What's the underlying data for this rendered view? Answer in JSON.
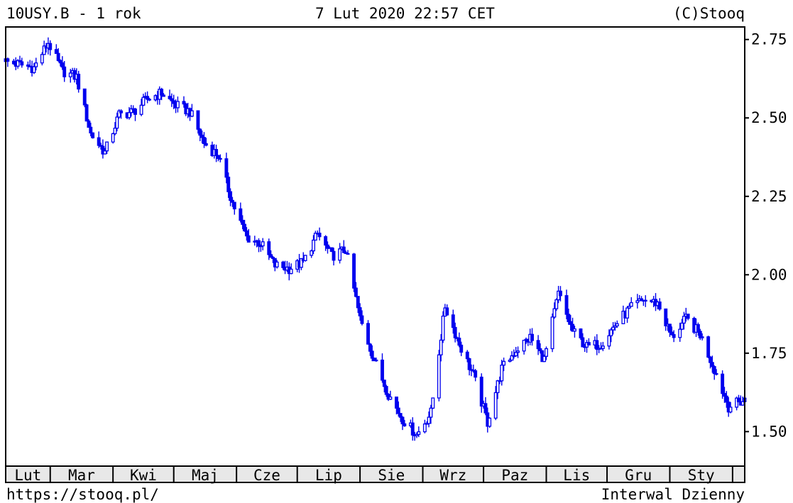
{
  "header": {
    "symbol": "10USY.B - 1 rok",
    "datetime": "7 Lut 2020 22:57 CET",
    "copyright": "(C)Stooq"
  },
  "footer": {
    "url": "https://stooq.pl/",
    "interval": "Interwal Dzienny"
  },
  "chart_data": {
    "type": "candlestick",
    "title": "10USY.B - 1 rok",
    "xlabel": "",
    "ylabel": "",
    "ylim": [
      1.39,
      2.79
    ],
    "y_ticks": [
      "1.50",
      "1.75",
      "2.00",
      "2.25",
      "2.50",
      "2.75"
    ],
    "y_tick_values": [
      1.5,
      1.75,
      2.0,
      2.25,
      2.5,
      2.75
    ],
    "x_ticks": [
      "Lut",
      "Mar",
      "Kwi",
      "Maj",
      "Cze",
      "Lip",
      "Sie",
      "Wrz",
      "Paz",
      "Lis",
      "Gru",
      "Sty"
    ],
    "x_range": [
      "2019-02-07",
      "2020-02-07"
    ],
    "month_starts": [
      "2019-02-01",
      "2019-03-01",
      "2019-04-01",
      "2019-05-01",
      "2019-06-01",
      "2019-07-01",
      "2019-08-01",
      "2019-09-01",
      "2019-10-01",
      "2019-11-01",
      "2019-12-01",
      "2020-01-01",
      "2020-02-01"
    ],
    "grid": false,
    "legend": "none",
    "colors": {
      "series": "#0000ee",
      "frame": "#000000",
      "month_band": "#e8e8e8"
    },
    "series": [
      {
        "x": [
          "2019-02-07",
          "2019-02-14",
          "2019-02-21",
          "2019-02-28",
          "2019-03-07",
          "2019-03-14",
          "2019-03-21",
          "2019-03-28",
          "2019-04-04",
          "2019-04-11",
          "2019-04-18",
          "2019-04-25",
          "2019-05-02",
          "2019-05-09",
          "2019-05-16",
          "2019-05-23",
          "2019-05-30",
          "2019-06-06",
          "2019-06-13",
          "2019-06-20",
          "2019-06-27",
          "2019-07-04",
          "2019-07-11",
          "2019-07-18",
          "2019-07-25",
          "2019-08-01",
          "2019-08-08",
          "2019-08-15",
          "2019-08-22",
          "2019-08-29",
          "2019-09-05",
          "2019-09-12",
          "2019-09-19",
          "2019-09-26",
          "2019-10-03",
          "2019-10-10",
          "2019-10-17",
          "2019-10-24",
          "2019-10-31",
          "2019-11-07",
          "2019-11-14",
          "2019-11-21",
          "2019-11-28",
          "2019-12-05",
          "2019-12-12",
          "2019-12-19",
          "2019-12-26",
          "2020-01-02",
          "2020-01-09",
          "2020-01-16",
          "2020-01-23",
          "2020-01-30",
          "2020-02-07"
        ],
        "values": [
          2.68,
          2.67,
          2.66,
          2.74,
          2.65,
          2.63,
          2.45,
          2.39,
          2.51,
          2.52,
          2.56,
          2.58,
          2.54,
          2.52,
          2.42,
          2.38,
          2.23,
          2.12,
          2.1,
          2.03,
          2.02,
          2.04,
          2.13,
          2.06,
          2.08,
          1.86,
          1.73,
          1.62,
          1.54,
          1.49,
          1.56,
          1.9,
          1.78,
          1.68,
          1.53,
          1.7,
          1.76,
          1.8,
          1.73,
          1.94,
          1.82,
          1.77,
          1.78,
          1.84,
          1.89,
          1.92,
          1.91,
          1.8,
          1.86,
          1.81,
          1.7,
          1.58,
          1.6
        ]
      }
    ]
  }
}
